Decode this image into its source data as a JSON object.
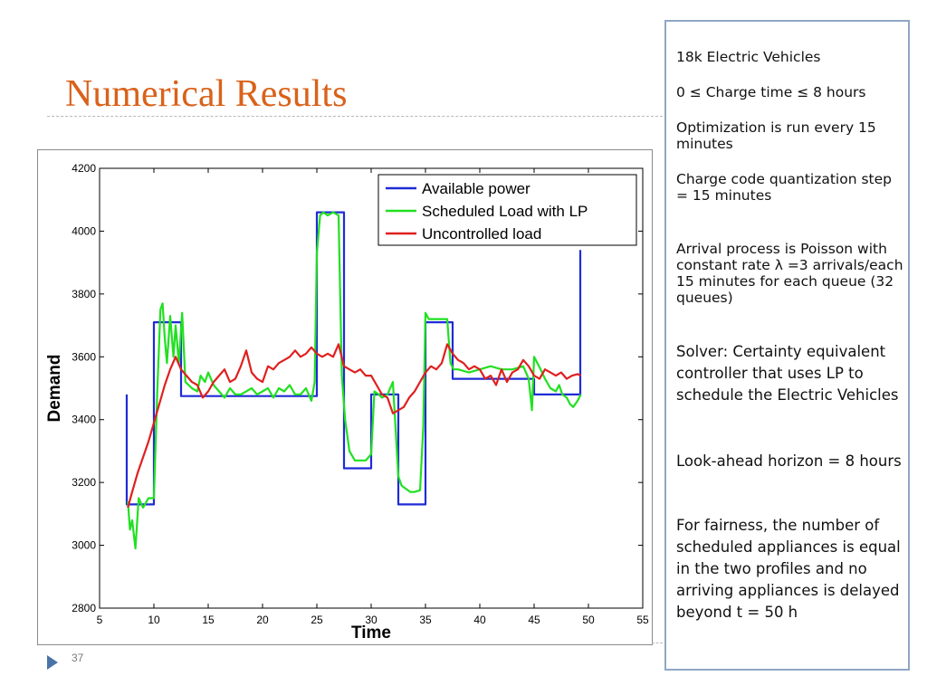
{
  "slide": {
    "title": "Numerical Results",
    "page_number": "37"
  },
  "colors": {
    "title": "#d9621a",
    "available_power": "#1f2bd6",
    "scheduled_load": "#21e021",
    "uncontrolled_load": "#e01f1f",
    "panel_border": "#8fa7c4"
  },
  "side_panel": {
    "items": [
      "18k Electric Vehicles",
      "0 ≤ Charge time ≤ 8 hours",
      "Optimization is run every 15 minutes",
      "Charge code quantization step = 15 minutes",
      "Arrival process is Poisson with constant rate λ =3 arrivals/each 15 minutes for each queue (32 queues)",
      "Solver: Certainty equivalent controller that uses LP to schedule the Electric Vehicles",
      "Look-ahead horizon = 8 hours",
      "For fairness, the number of scheduled appliances is equal in the two profiles and no arriving appliances is delayed beyond t = 50 h"
    ]
  },
  "chart_data": {
    "type": "line",
    "title": "",
    "xlabel": "Time",
    "ylabel": "Demand",
    "xlim": [
      5,
      55
    ],
    "ylim": [
      2800,
      4200
    ],
    "xticks": [
      "5",
      "10",
      "15",
      "20",
      "25",
      "30",
      "35",
      "40",
      "45",
      "50",
      "55"
    ],
    "yticks": [
      "2800",
      "3000",
      "3200",
      "3400",
      "3600",
      "3800",
      "4000",
      "4200"
    ],
    "grid": false,
    "legend_position": "top-right",
    "series": [
      {
        "name": "Available power",
        "color": "#1f2bd6",
        "x": [
          7.5,
          7.5,
          10,
          10,
          12.5,
          12.5,
          25,
          25,
          27.5,
          27.5,
          30,
          30,
          32.5,
          32.5,
          35,
          35,
          37.5,
          37.5,
          45,
          45,
          49.25,
          49.25
        ],
        "y": [
          3480,
          3130,
          3130,
          3710,
          3710,
          3475,
          3475,
          4060,
          4060,
          3245,
          3245,
          3480,
          3480,
          3130,
          3130,
          3710,
          3710,
          3530,
          3530,
          3480,
          3480,
          3940
        ]
      },
      {
        "name": "Scheduled Load with LP",
        "color": "#21e021",
        "x": [
          7.6,
          7.8,
          8.0,
          8.3,
          8.6,
          9.0,
          9.5,
          10.0,
          10.3,
          10.6,
          10.8,
          11.0,
          11.2,
          11.5,
          11.8,
          12.0,
          12.3,
          12.6,
          12.9,
          13.5,
          14.0,
          14.3,
          14.7,
          15.0,
          15.5,
          16.0,
          16.5,
          17.0,
          17.5,
          18.0,
          18.5,
          19.0,
          19.5,
          20.0,
          20.5,
          21.0,
          21.5,
          22.0,
          22.5,
          23.0,
          23.5,
          24.0,
          24.5,
          24.8,
          25.0,
          25.3,
          25.6,
          26.0,
          26.5,
          27.0,
          27.3,
          27.6,
          28.0,
          28.5,
          29.0,
          29.5,
          30.0,
          30.3,
          30.7,
          31.0,
          31.5,
          32.0,
          32.5,
          32.8,
          33.2,
          33.6,
          34.0,
          34.5,
          34.8,
          35.0,
          35.3,
          35.6,
          36.0,
          36.5,
          37.0,
          37.3,
          37.6,
          38.0,
          39.0,
          40.0,
          41.0,
          42.0,
          43.0,
          44.0,
          44.5,
          44.8,
          45.0,
          45.3,
          45.6,
          46.0,
          46.5,
          47.0,
          47.3,
          47.6,
          48.0,
          48.3,
          48.6,
          49.0,
          49.3
        ],
        "y": [
          3140,
          3050,
          3080,
          2990,
          3150,
          3120,
          3150,
          3150,
          3480,
          3750,
          3770,
          3660,
          3580,
          3730,
          3600,
          3700,
          3580,
          3740,
          3520,
          3500,
          3490,
          3540,
          3520,
          3550,
          3510,
          3490,
          3470,
          3500,
          3480,
          3480,
          3490,
          3500,
          3480,
          3490,
          3500,
          3470,
          3500,
          3490,
          3510,
          3480,
          3480,
          3500,
          3460,
          3520,
          3930,
          4050,
          4060,
          4050,
          4060,
          4050,
          3540,
          3400,
          3300,
          3270,
          3270,
          3270,
          3290,
          3490,
          3480,
          3470,
          3480,
          3520,
          3220,
          3190,
          3180,
          3170,
          3170,
          3175,
          3380,
          3740,
          3720,
          3720,
          3720,
          3720,
          3720,
          3580,
          3560,
          3560,
          3550,
          3560,
          3570,
          3560,
          3560,
          3570,
          3530,
          3430,
          3600,
          3580,
          3560,
          3530,
          3500,
          3490,
          3510,
          3480,
          3470,
          3450,
          3440,
          3460,
          3480
        ]
      },
      {
        "name": "Uncontrolled load",
        "color": "#e01f1f",
        "x": [
          7.6,
          8.0,
          8.5,
          9.0,
          9.5,
          10.0,
          10.5,
          11.0,
          11.5,
          12.0,
          12.5,
          13.0,
          13.5,
          14.0,
          14.5,
          15.0,
          15.5,
          16.0,
          16.5,
          17.0,
          17.5,
          18.0,
          18.5,
          19.0,
          19.5,
          20.0,
          20.5,
          21.0,
          21.5,
          22.0,
          22.5,
          23.0,
          23.5,
          24.0,
          24.5,
          25.0,
          25.5,
          26.0,
          26.5,
          27.0,
          27.5,
          28.0,
          28.5,
          29.0,
          29.5,
          30.0,
          30.5,
          31.0,
          31.5,
          32.0,
          32.5,
          33.0,
          33.5,
          34.0,
          34.5,
          35.0,
          35.5,
          36.0,
          36.5,
          37.0,
          37.5,
          38.0,
          38.5,
          39.0,
          39.5,
          40.0,
          40.5,
          41.0,
          41.5,
          42.0,
          42.5,
          43.0,
          43.5,
          44.0,
          44.5,
          45.0,
          45.5,
          46.0,
          46.5,
          47.0,
          47.5,
          48.0,
          48.5,
          49.0,
          49.3
        ],
        "y": [
          3120,
          3170,
          3230,
          3280,
          3330,
          3390,
          3450,
          3510,
          3560,
          3600,
          3560,
          3540,
          3520,
          3510,
          3470,
          3490,
          3520,
          3540,
          3560,
          3520,
          3530,
          3570,
          3620,
          3550,
          3530,
          3520,
          3570,
          3560,
          3580,
          3590,
          3600,
          3620,
          3600,
          3610,
          3630,
          3610,
          3600,
          3610,
          3600,
          3640,
          3570,
          3560,
          3550,
          3560,
          3540,
          3540,
          3510,
          3480,
          3470,
          3420,
          3430,
          3440,
          3470,
          3490,
          3520,
          3550,
          3570,
          3560,
          3580,
          3640,
          3610,
          3590,
          3580,
          3560,
          3570,
          3560,
          3530,
          3540,
          3510,
          3560,
          3520,
          3550,
          3560,
          3590,
          3570,
          3540,
          3530,
          3560,
          3550,
          3540,
          3550,
          3530,
          3540,
          3545,
          3540
        ]
      }
    ]
  }
}
